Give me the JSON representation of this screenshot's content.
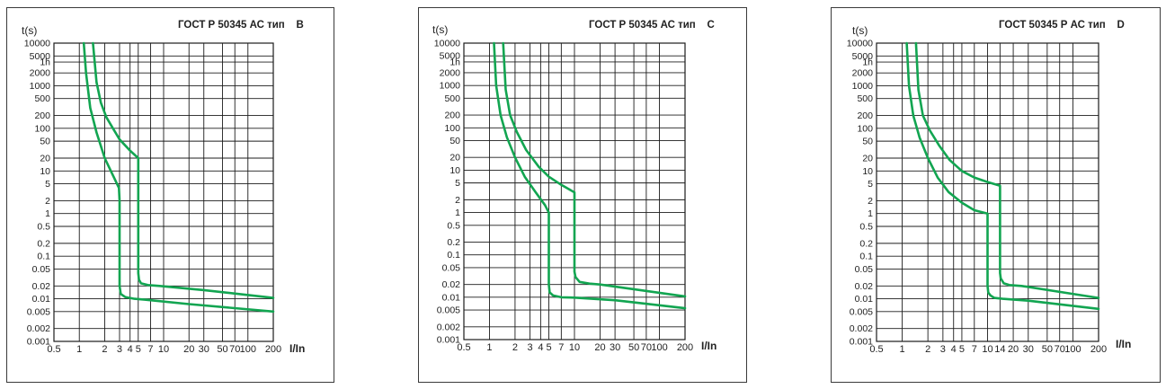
{
  "chart_data": [
    {
      "type": "line",
      "title": "ГОСТ Р 50345 АС тип    В",
      "ylabel": "t(s)",
      "xlabel": "I/In",
      "xscale": "log",
      "yscale": "log",
      "xlim": [
        0.5,
        200
      ],
      "ylim": [
        0.001,
        10000
      ],
      "grid": true,
      "x_tick_labels": [
        "0.5",
        "1",
        "2",
        "3",
        "4",
        "5",
        "7",
        "10",
        "20",
        "30",
        "50",
        "70",
        "100",
        "200"
      ],
      "x_tick_values": [
        0.5,
        1,
        2,
        3,
        4,
        5,
        7,
        10,
        20,
        30,
        50,
        70,
        100,
        200
      ],
      "y_tick_labels": [
        "10000",
        "5000",
        "1h",
        "2000",
        "1000",
        "500",
        "200",
        "100",
        "50",
        "20",
        "10",
        "5",
        "2",
        "1",
        "0.5",
        "0.2",
        "0.1",
        "0.05",
        "0.02",
        "0.01",
        "0.005",
        "0.002",
        "0.001"
      ],
      "y_tick_values": [
        10000,
        5000,
        3600,
        2000,
        1000,
        500,
        200,
        100,
        50,
        20,
        10,
        5,
        2,
        1,
        0.5,
        0.2,
        0.1,
        0.05,
        0.02,
        0.01,
        0.005,
        0.002,
        0.001
      ],
      "series": [
        {
          "x": [
            1.13,
            1.2,
            1.35,
            1.6,
            2.0,
            2.5,
            2.95,
            3.0,
            3.0,
            3.1,
            3.5,
            4.5,
            6,
            20,
            200
          ],
          "y": [
            10000,
            2000,
            300,
            80,
            20,
            8,
            4,
            2,
            0.02,
            0.013,
            0.011,
            0.01,
            0.0095,
            0.0075,
            0.005
          ]
        },
        {
          "x": [
            1.45,
            1.6,
            1.8,
            2.1,
            3.0,
            4.0,
            5.0,
            5.0,
            5.1,
            5.4,
            6.5,
            9,
            30,
            200
          ],
          "y": [
            10000,
            1200,
            400,
            180,
            55,
            30,
            20,
            0.04,
            0.028,
            0.023,
            0.021,
            0.02,
            0.016,
            0.0105
          ]
        }
      ]
    },
    {
      "type": "line",
      "title": "ГОСТ Р 50345 АС тип    С",
      "ylabel": "t(s)",
      "xlabel": "I/In",
      "xscale": "log",
      "yscale": "log",
      "xlim": [
        0.5,
        200
      ],
      "ylim": [
        0.001,
        10000
      ],
      "grid": true,
      "x_tick_labels": [
        "0.5",
        "1",
        "2",
        "3",
        "4",
        "5",
        "7",
        "10",
        "20",
        "30",
        "50",
        "70",
        "100",
        "200"
      ],
      "x_tick_values": [
        0.5,
        1,
        2,
        3,
        4,
        5,
        7,
        10,
        20,
        30,
        50,
        70,
        100,
        200
      ],
      "y_tick_labels": [
        "10000",
        "5000",
        "1h",
        "2000",
        "1000",
        "500",
        "200",
        "100",
        "50",
        "20",
        "10",
        "5",
        "2",
        "1",
        "0.5",
        "0.2",
        "0.1",
        "0.05",
        "0.02",
        "0.01",
        "0.005",
        "0.002",
        "0.001"
      ],
      "y_tick_values": [
        10000,
        5000,
        3600,
        2000,
        1000,
        500,
        200,
        100,
        50,
        20,
        10,
        5,
        2,
        1,
        0.5,
        0.2,
        0.1,
        0.05,
        0.02,
        0.01,
        0.005,
        0.002,
        0.001
      ],
      "series": [
        {
          "x": [
            1.13,
            1.2,
            1.35,
            1.6,
            2.0,
            2.6,
            3.5,
            4.5,
            5.0,
            5.0,
            5.1,
            5.6,
            7,
            10,
            30,
            200
          ],
          "y": [
            10000,
            1000,
            200,
            60,
            20,
            7,
            3,
            1.5,
            1,
            0.02,
            0.013,
            0.011,
            0.01,
            0.0098,
            0.0085,
            0.0055
          ]
        },
        {
          "x": [
            1.45,
            1.55,
            1.75,
            2.1,
            2.7,
            3.8,
            5.0,
            7,
            10,
            10,
            10.3,
            11.5,
            15,
            20,
            200
          ],
          "y": [
            10000,
            800,
            200,
            80,
            30,
            12,
            7,
            4.5,
            3,
            0.04,
            0.03,
            0.023,
            0.021,
            0.02,
            0.0105
          ]
        }
      ]
    },
    {
      "type": "line",
      "title": "ГОСТ 50345 Р АС тип    D",
      "ylabel": "t(s)",
      "xlabel": "I/In",
      "xscale": "log",
      "yscale": "log",
      "xlim": [
        0.5,
        200
      ],
      "ylim": [
        0.001,
        10000
      ],
      "grid": true,
      "x_tick_labels": [
        "0.5",
        "1",
        "2",
        "3",
        "4",
        "5",
        "7",
        "10",
        "14",
        "20",
        "30",
        "50",
        "70",
        "100",
        "200"
      ],
      "x_tick_values": [
        0.5,
        1,
        2,
        3,
        4,
        5,
        7,
        10,
        14,
        20,
        30,
        50,
        70,
        100,
        200
      ],
      "y_tick_labels": [
        "10000",
        "5000",
        "1h",
        "2000",
        "1000",
        "500",
        "200",
        "100",
        "50",
        "20",
        "10",
        "5",
        "2",
        "1",
        "0.5",
        "0.2",
        "0.1",
        "0.05",
        "0.02",
        "0.01",
        "0.005",
        "0.002",
        "0.001"
      ],
      "y_tick_values": [
        10000,
        5000,
        3600,
        2000,
        1000,
        500,
        200,
        100,
        50,
        20,
        10,
        5,
        2,
        1,
        0.5,
        0.2,
        0.1,
        0.05,
        0.02,
        0.01,
        0.005,
        0.002,
        0.001
      ],
      "series": [
        {
          "x": [
            1.13,
            1.2,
            1.35,
            1.6,
            2.0,
            2.6,
            3.5,
            5.0,
            7,
            10,
            10,
            10.2,
            10.8,
            12,
            15,
            30,
            200
          ],
          "y": [
            10000,
            1000,
            200,
            60,
            20,
            7,
            3.2,
            1.8,
            1.2,
            1,
            0.02,
            0.014,
            0.012,
            0.0105,
            0.01,
            0.009,
            0.0058
          ]
        },
        {
          "x": [
            1.45,
            1.55,
            1.75,
            2.1,
            2.7,
            3.6,
            5.0,
            7,
            10,
            14,
            14,
            14.3,
            15.5,
            18,
            25,
            200
          ],
          "y": [
            10000,
            800,
            200,
            90,
            40,
            18,
            10,
            7,
            5.5,
            4.5,
            0.04,
            0.03,
            0.023,
            0.021,
            0.02,
            0.0105
          ]
        }
      ]
    }
  ],
  "colors": {
    "curve": "#12a551",
    "grid": "#1c1c1c",
    "frame": "#3a3a3a"
  }
}
